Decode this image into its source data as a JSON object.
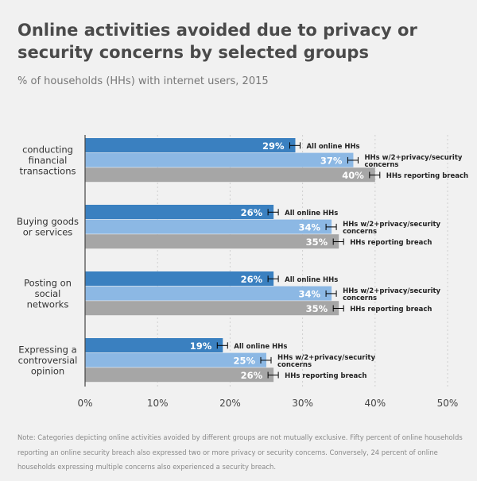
{
  "title": "Online activities avoided due to privacy or security concerns by selected groups",
  "subtitle": "% of households (HHs) with internet users, 2015",
  "note": "Note: Categories depicting online activities avoided by different groups are not mutually exclusive. Fifty percent of online households reporting an online security breach also expressed two or more privacy or security concerns. Conversely, 24 percent of online households expressing multiple concerns also experienced a security breach.",
  "colors": {
    "all_online": "#3a80c0",
    "concerns": "#8cb8e4",
    "breach": "#a6a6a6",
    "axis": "#444444",
    "grid": "#cfcfcf"
  },
  "chart_data": {
    "type": "bar",
    "orientation": "horizontal",
    "categories": [
      [
        "conducting",
        "financial",
        "transactions"
      ],
      [
        "Buying goods",
        "or services"
      ],
      [
        "Posting on",
        "social",
        "networks"
      ],
      [
        "Expressing a",
        "controversial",
        "opinion"
      ]
    ],
    "series": [
      {
        "name": "All online HHs",
        "label_lines": [
          "All online HHs"
        ],
        "values": [
          29,
          26,
          26,
          19
        ]
      },
      {
        "name": "HHs w/2+privacy/security concerns",
        "label_lines": [
          "HHs w/2+privacy/security",
          "concerns"
        ],
        "values": [
          37,
          34,
          34,
          25
        ]
      },
      {
        "name": "HHs reporting breach",
        "label_lines": [
          "HHs reporting breach"
        ],
        "values": [
          40,
          35,
          35,
          26
        ]
      }
    ],
    "error_bars": true,
    "value_suffix": "%",
    "xlim": [
      0,
      50
    ],
    "xticks": [
      0,
      10,
      20,
      30,
      40,
      50
    ],
    "xtick_labels": [
      "0%",
      "10%",
      "20%",
      "30%",
      "40%",
      "50%"
    ],
    "grid": true,
    "legend": "inline-labels"
  }
}
